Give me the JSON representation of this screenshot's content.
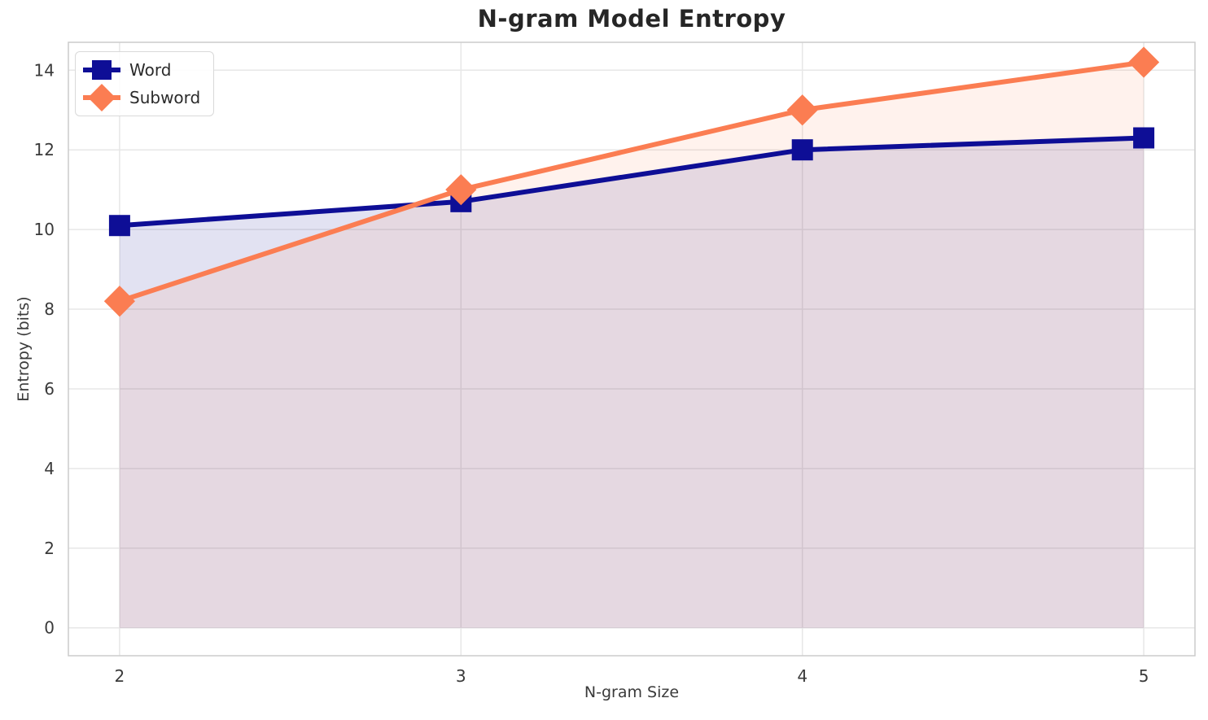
{
  "chart_data": {
    "type": "line",
    "title": "N-gram Model Entropy",
    "xlabel": "N-gram Size",
    "ylabel": "Entropy (bits)",
    "x": [
      2,
      3,
      4,
      5
    ],
    "series": [
      {
        "name": "Word",
        "color": "#0e0e96",
        "marker": "square",
        "values": [
          10.1,
          10.7,
          12.0,
          12.3
        ],
        "fill_opacity": 0.12
      },
      {
        "name": "Subword",
        "color": "#fb7d52",
        "marker": "diamond",
        "values": [
          8.2,
          11.0,
          13.0,
          14.2
        ],
        "fill_opacity": 0.1
      }
    ],
    "xticks": [
      "2",
      "3",
      "4",
      "5"
    ],
    "xtick_values": [
      2,
      3,
      4,
      5
    ],
    "yticks": [
      "0",
      "2",
      "4",
      "6",
      "8",
      "10",
      "12",
      "14"
    ],
    "ytick_values": [
      0,
      2,
      4,
      6,
      8,
      10,
      12,
      14
    ],
    "xlim": [
      1.85,
      5.15
    ],
    "ylim": [
      -0.7,
      14.7
    ],
    "grid": true,
    "area_fill_baseline": 0,
    "legend_position": "upper left",
    "grid_color": "#e7e7e7",
    "border_color": "#cccccc",
    "tick_label_color": "#3a3a3a"
  }
}
